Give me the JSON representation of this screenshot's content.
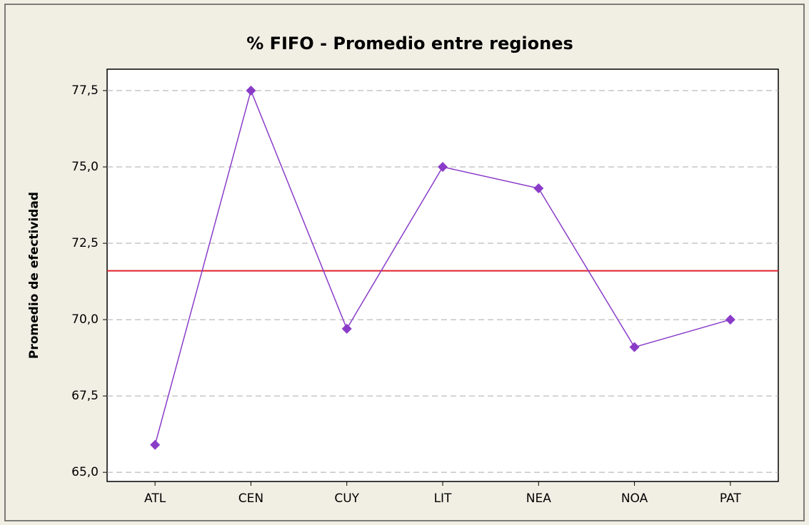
{
  "chart_data": {
    "type": "line",
    "title": "% FIFO - Promedio entre regiones",
    "y_label": "Promedio de efectividad",
    "categories": [
      "ATL",
      "CEN",
      "CUY",
      "LIT",
      "NEA",
      "NOA",
      "PAT"
    ],
    "series": [
      {
        "color": "#8a3cc8",
        "values": [
          65.9,
          77.5,
          69.7,
          75.0,
          74.3,
          69.1,
          70.0
        ]
      }
    ],
    "reference_line": {
      "value": 71.6,
      "color": "#e0202a"
    },
    "ylim": [
      64.7,
      78.2
    ],
    "yticks": [
      {
        "value": 65,
        "label": "65,0"
      },
      {
        "value": 67.5,
        "label": "67,5"
      },
      {
        "value": 70,
        "label": "70,0"
      },
      {
        "value": 72.5,
        "label": "72,5"
      },
      {
        "value": 75,
        "label": "75,0"
      },
      {
        "value": 77.5,
        "label": "77,5"
      }
    ],
    "grid": true
  }
}
